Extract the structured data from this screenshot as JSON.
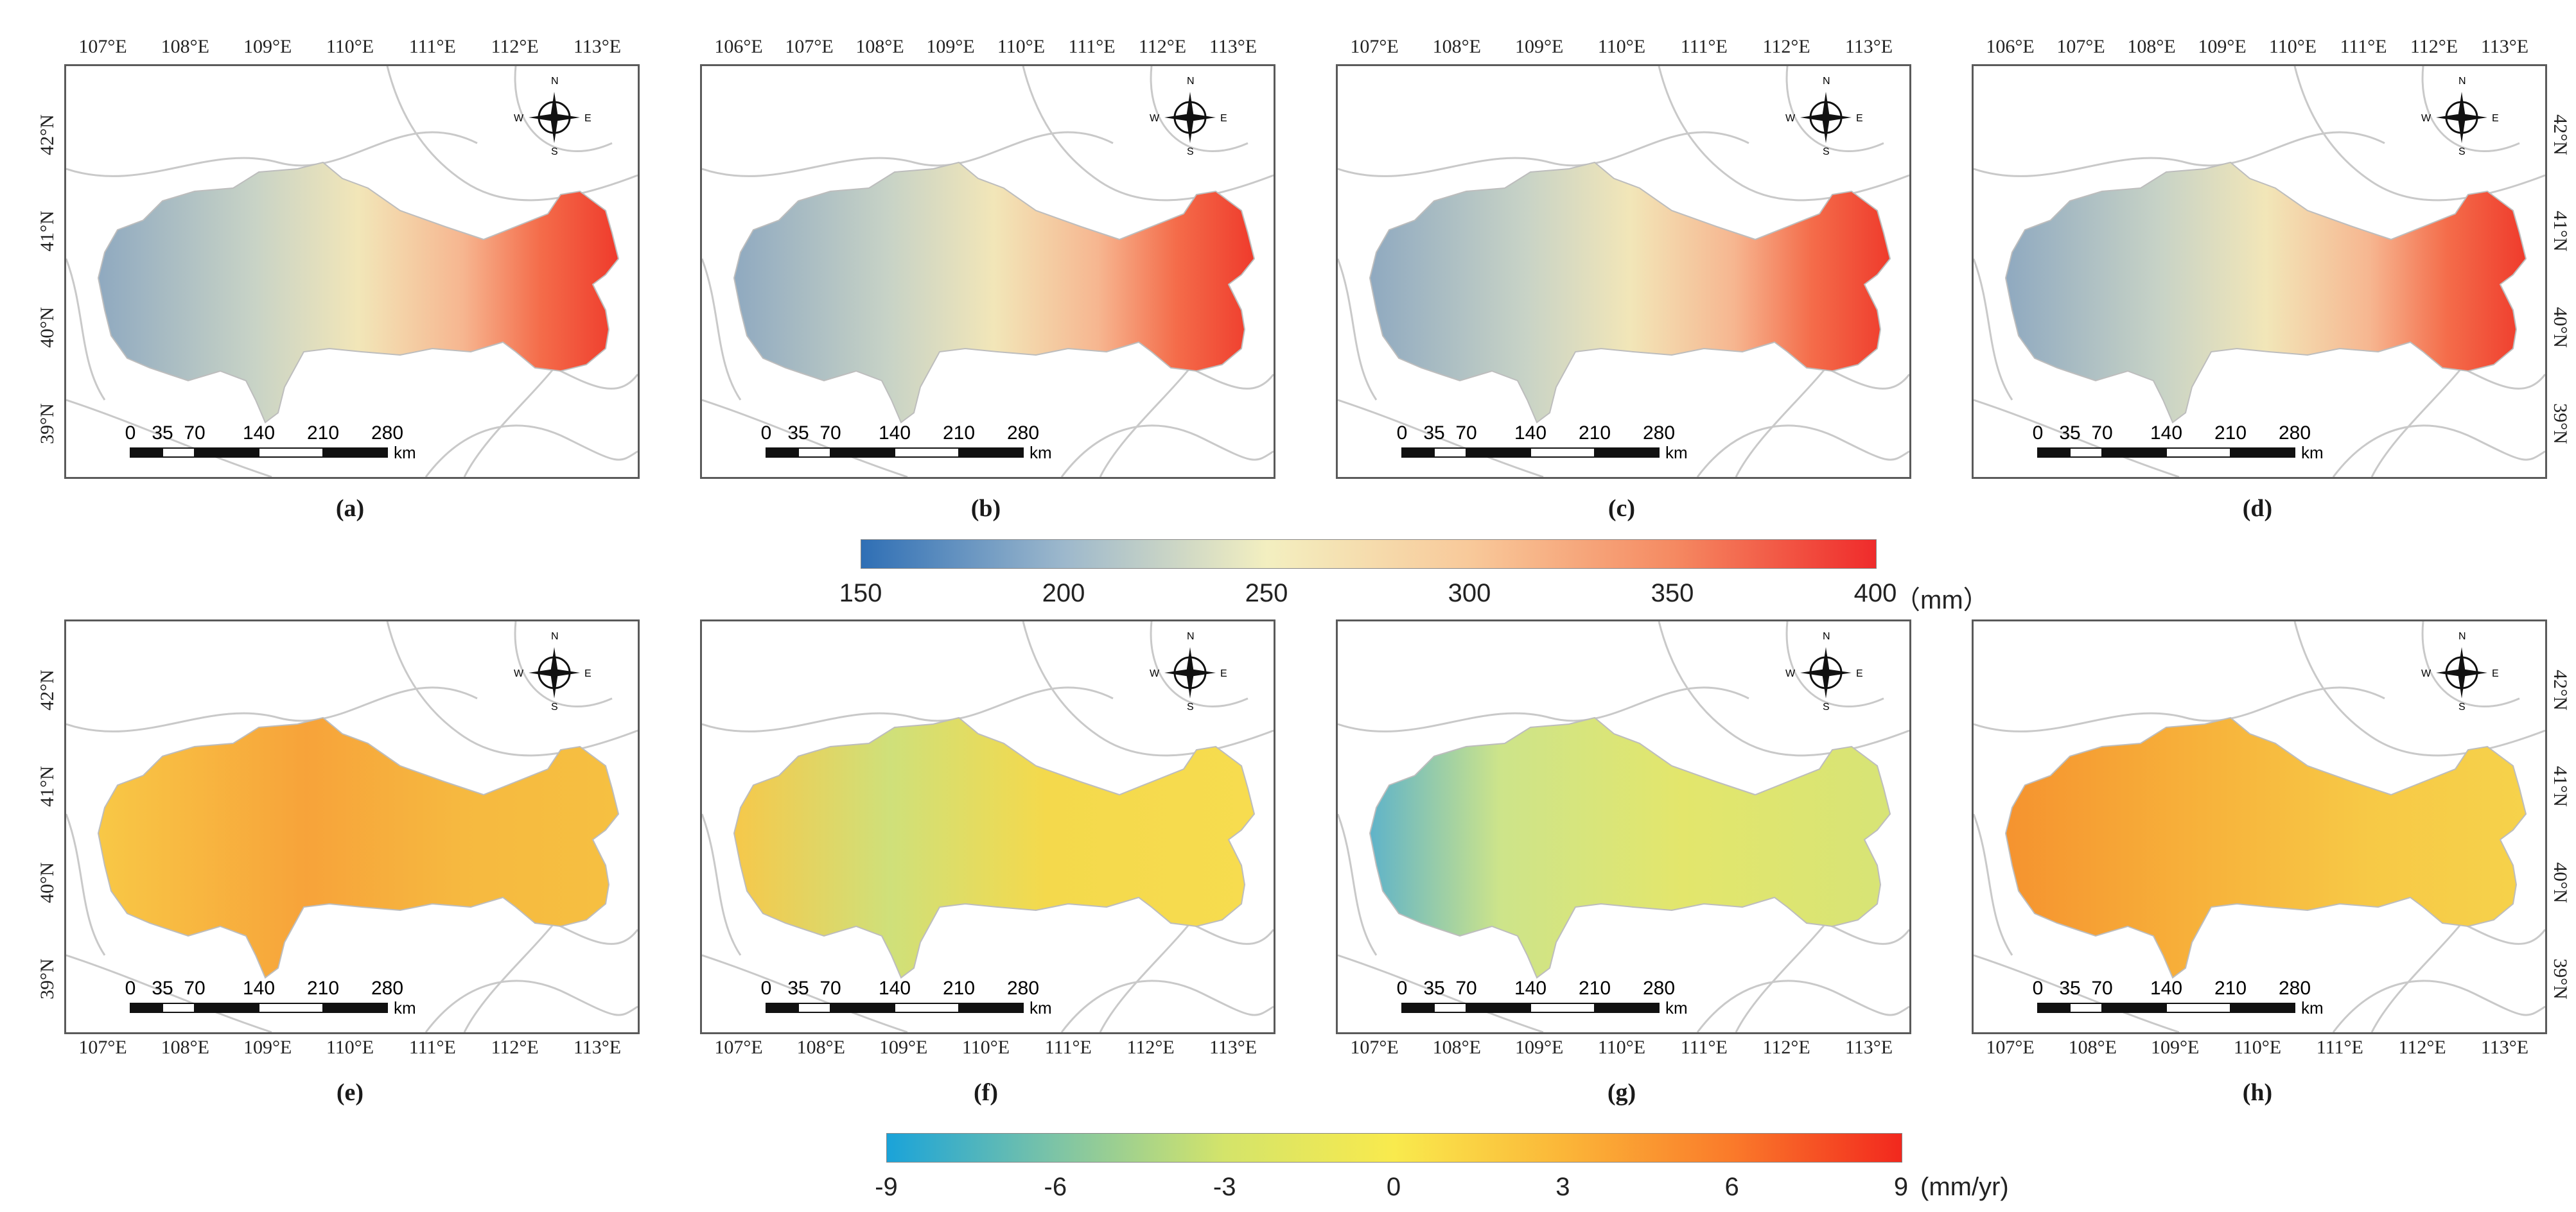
{
  "top_row": {
    "lon_ticks_top_a": [
      "107°E",
      "108°E",
      "109°E",
      "110°E",
      "111°E",
      "112°E",
      "113°E"
    ],
    "lon_ticks_top_b": [
      "106°E",
      "107°E",
      "108°E",
      "109°E",
      "110°E",
      "111°E",
      "112°E",
      "113°E"
    ],
    "lat_ticks": [
      "42°N",
      "41°N",
      "40°N",
      "39°N"
    ],
    "panels": [
      {
        "label": "(a)"
      },
      {
        "label": "(b)"
      },
      {
        "label": "(c)"
      },
      {
        "label": "(d)"
      }
    ]
  },
  "bottom_row": {
    "lon_ticks_bottom": [
      "107°E",
      "108°E",
      "109°E",
      "110°E",
      "111°E",
      "112°E",
      "113°E"
    ],
    "lat_ticks": [
      "42°N",
      "41°N",
      "40°N",
      "39°N"
    ],
    "panels": [
      {
        "label": "(e)"
      },
      {
        "label": "(f)"
      },
      {
        "label": "(g)"
      },
      {
        "label": "(h)"
      }
    ]
  },
  "scale_bar": {
    "labels": [
      "0",
      "35",
      "70",
      "140",
      "210",
      "280"
    ],
    "unit": "km"
  },
  "compass": {
    "n": "N",
    "s": "S",
    "e": "E",
    "w": "W"
  },
  "legend_precip": {
    "ticks": [
      "150",
      "200",
      "250",
      "300",
      "350",
      "400"
    ],
    "unit": "（mm）",
    "colors": [
      "#2f6fb5",
      "#9db8cc",
      "#f3efc0",
      "#f8c99a",
      "#f58a62",
      "#ef2b2b"
    ],
    "range": [
      150,
      400
    ]
  },
  "legend_trend": {
    "ticks": [
      "-9",
      "-6",
      "-3",
      "0",
      "3",
      "6",
      "9"
    ],
    "unit": "(mm/yr)",
    "colors": [
      "#1aa3d9",
      "#7dc4a6",
      "#d4e46a",
      "#f9ea4d",
      "#fbb638",
      "#fa7a2a",
      "#f2281e"
    ],
    "range": [
      -9,
      9
    ]
  }
}
